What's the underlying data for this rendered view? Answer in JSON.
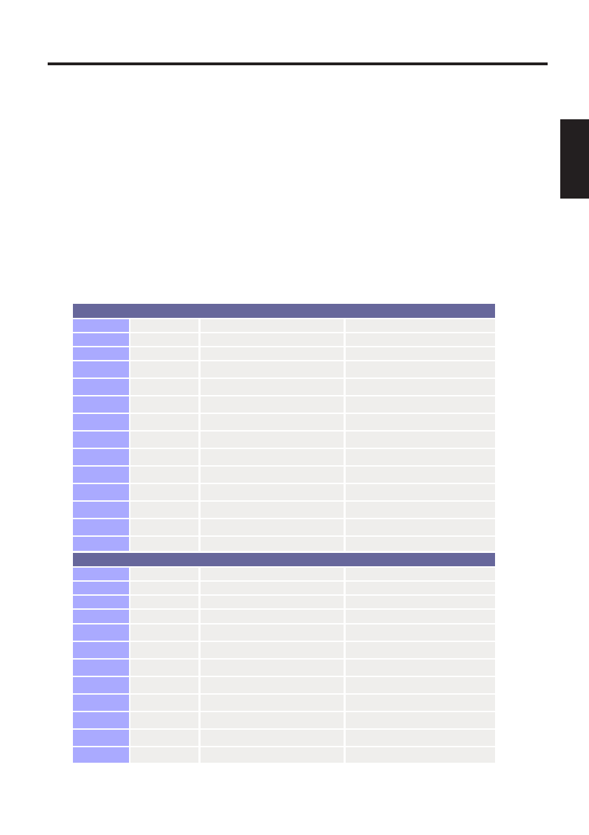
{
  "colors": {
    "rule": "#231f20",
    "section_header": "#67679b",
    "first_column": "#aaaaff",
    "cell": "#efeeec"
  },
  "table": {
    "sections": [
      {
        "header": "",
        "rows": [
          [
            "",
            "",
            "",
            ""
          ],
          [
            "",
            "",
            "",
            ""
          ],
          [
            "",
            "",
            "",
            ""
          ],
          [
            "",
            "",
            "",
            ""
          ],
          [
            "",
            "",
            "",
            ""
          ],
          [
            "",
            "",
            "",
            ""
          ],
          [
            "",
            "",
            "",
            ""
          ],
          [
            "",
            "",
            "",
            ""
          ],
          [
            "",
            "",
            "",
            ""
          ],
          [
            "",
            "",
            "",
            ""
          ],
          [
            "",
            "",
            "",
            ""
          ],
          [
            "",
            "",
            "",
            ""
          ],
          [
            "",
            "",
            "",
            ""
          ],
          [
            "",
            "",
            "",
            ""
          ]
        ]
      },
      {
        "header": "",
        "rows": [
          [
            "",
            "",
            "",
            ""
          ],
          [
            "",
            "",
            "",
            ""
          ],
          [
            "",
            "",
            "",
            ""
          ],
          [
            "",
            "",
            "",
            ""
          ],
          [
            "",
            "",
            "",
            ""
          ],
          [
            "",
            "",
            "",
            ""
          ],
          [
            "",
            "",
            "",
            ""
          ],
          [
            "",
            "",
            "",
            ""
          ],
          [
            "",
            "",
            "",
            ""
          ],
          [
            "",
            "",
            "",
            ""
          ],
          [
            "",
            "",
            "",
            ""
          ],
          [
            "",
            "",
            "",
            ""
          ]
        ]
      }
    ]
  }
}
